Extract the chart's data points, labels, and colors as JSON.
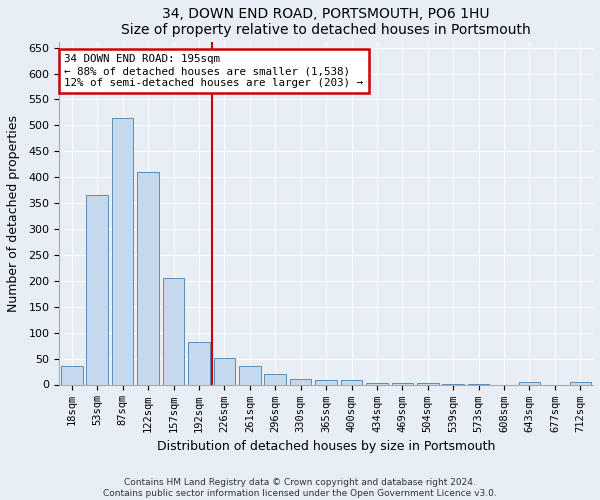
{
  "title": "34, DOWN END ROAD, PORTSMOUTH, PO6 1HU",
  "subtitle": "Size of property relative to detached houses in Portsmouth",
  "xlabel": "Distribution of detached houses by size in Portsmouth",
  "ylabel": "Number of detached properties",
  "bar_labels": [
    "18sqm",
    "53sqm",
    "87sqm",
    "122sqm",
    "157sqm",
    "192sqm",
    "226sqm",
    "261sqm",
    "296sqm",
    "330sqm",
    "365sqm",
    "400sqm",
    "434sqm",
    "469sqm",
    "504sqm",
    "539sqm",
    "573sqm",
    "608sqm",
    "643sqm",
    "677sqm",
    "712sqm"
  ],
  "bar_values": [
    35,
    365,
    515,
    410,
    205,
    82,
    52,
    35,
    21,
    10,
    8,
    8,
    2,
    2,
    2,
    1,
    1,
    0,
    5,
    0,
    5
  ],
  "bar_color": "#c6d9ec",
  "bar_edgecolor": "#5b8db8",
  "vline_x": 5.5,
  "vline_color": "#cc0000",
  "annotation_title": "34 DOWN END ROAD: 195sqm",
  "annotation_line1": "← 88% of detached houses are smaller (1,538)",
  "annotation_line2": "12% of semi-detached houses are larger (203) →",
  "annotation_box_color": "#cc0000",
  "ylim": [
    0,
    660
  ],
  "yticks": [
    0,
    50,
    100,
    150,
    200,
    250,
    300,
    350,
    400,
    450,
    500,
    550,
    600,
    650
  ],
  "footnote1": "Contains HM Land Registry data © Crown copyright and database right 2024.",
  "footnote2": "Contains public sector information licensed under the Open Government Licence v3.0.",
  "bg_color": "#e8eef5",
  "plot_bg_color": "#e8eef5"
}
